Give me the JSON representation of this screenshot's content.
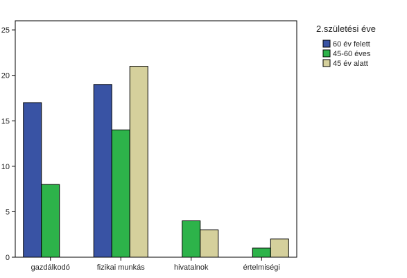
{
  "chart_data": {
    "type": "bar",
    "categories": [
      "gazdálkodó",
      "fizikai munkás",
      "hivatalnok",
      "értelmiségi"
    ],
    "series": [
      {
        "name": "60 év felett",
        "color": "#3953a4",
        "values": [
          17,
          19,
          0,
          0
        ]
      },
      {
        "name": "45-60 éves",
        "color": "#2db34a",
        "values": [
          8,
          14,
          4,
          1
        ]
      },
      {
        "name": "45 év alatt",
        "color": "#d5d09c",
        "values": [
          0,
          21,
          3,
          2
        ]
      }
    ],
    "yticks": [
      0,
      5,
      10,
      15,
      20,
      25
    ],
    "ylim": [
      0,
      26
    ],
    "legend": {
      "title": "2.születési éve",
      "position": "top-right"
    },
    "grid": false,
    "plot_background": "#ffffff"
  }
}
